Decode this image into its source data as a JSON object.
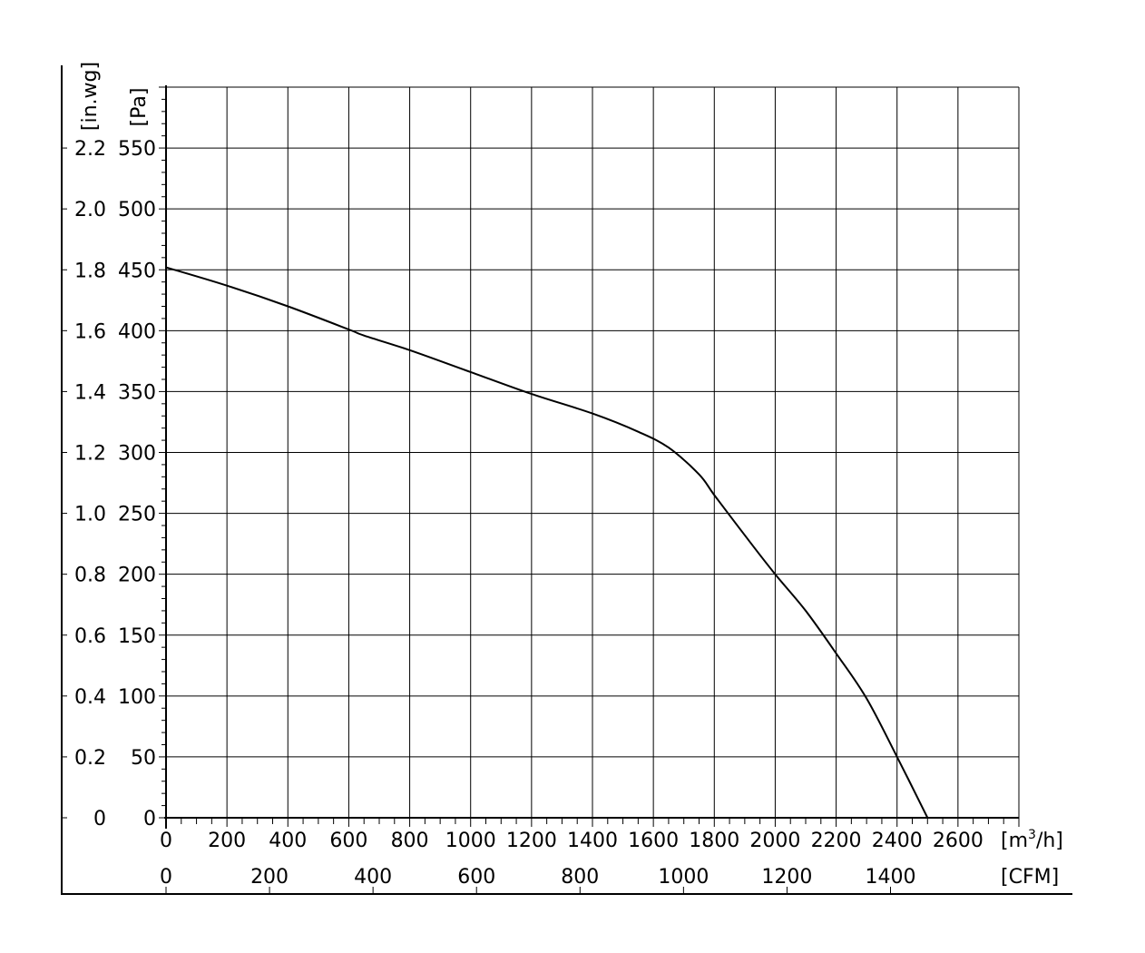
{
  "chart_data": {
    "type": "line",
    "title": "",
    "grid": true,
    "colors": {
      "line": "#000000",
      "grid": "#000000",
      "background": "#ffffff"
    },
    "x_axis": {
      "primary": {
        "unit_label": "[m³/h]",
        "unit_base": "[m",
        "unit_sup": "3",
        "unit_tail": "/h]",
        "range": [
          0,
          2800
        ],
        "major_step": 200,
        "minor_step": 50,
        "ticks": [
          0,
          200,
          400,
          600,
          800,
          1000,
          1200,
          1400,
          1600,
          1800,
          2000,
          2200,
          2400,
          2600
        ]
      },
      "secondary": {
        "unit_label": "[CFM]",
        "factor_per_m3h": 0.5886,
        "ticks": [
          0,
          200,
          400,
          600,
          800,
          1000,
          1200,
          1400
        ]
      }
    },
    "y_axis": {
      "primary": {
        "unit_label": "[Pa]",
        "range": [
          0,
          600
        ],
        "major_step": 50,
        "minor_step": 10,
        "ticks": [
          0,
          50,
          100,
          150,
          200,
          250,
          300,
          350,
          400,
          450,
          500,
          550
        ]
      },
      "secondary": {
        "unit_label": "[in.wg]",
        "ticks": [
          "0",
          "0.2",
          "0.4",
          "0.6",
          "0.8",
          "1.0",
          "1.2",
          "1.4",
          "1.6",
          "1.8",
          "2.0",
          "2.2"
        ]
      }
    },
    "series": [
      {
        "x": [
          0,
          200,
          400,
          600,
          650,
          800,
          1000,
          1200,
          1400,
          1550,
          1650,
          1750,
          1800,
          1900,
          2000,
          2100,
          2200,
          2300,
          2400,
          2500
        ],
        "y": [
          452,
          437,
          420,
          401,
          396,
          384,
          366,
          348,
          332,
          317,
          304,
          282,
          265,
          232,
          200,
          170,
          135,
          98,
          50,
          0
        ]
      }
    ]
  }
}
